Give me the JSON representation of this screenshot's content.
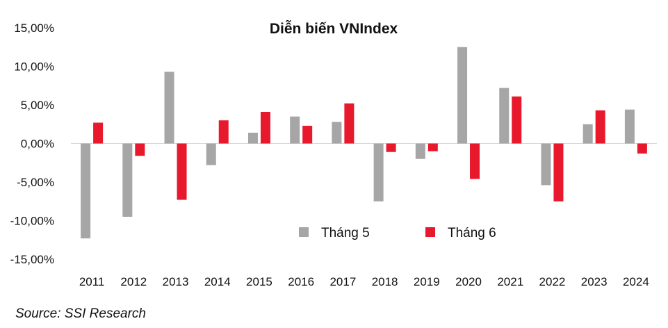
{
  "chart_data": {
    "type": "bar",
    "title": "Diễn biến VNIndex",
    "xlabel": "",
    "ylabel": "",
    "categories": [
      "2011",
      "2012",
      "2013",
      "2014",
      "2015",
      "2016",
      "2017",
      "2018",
      "2019",
      "2020",
      "2021",
      "2022",
      "2023",
      "2024"
    ],
    "series": [
      {
        "name": "Tháng 5",
        "color": "#a6a6a6",
        "values": [
          -12.3,
          -9.5,
          9.3,
          -2.8,
          1.4,
          3.5,
          2.8,
          -7.5,
          -2.0,
          12.5,
          7.2,
          -5.4,
          2.5,
          4.4
        ]
      },
      {
        "name": "Tháng 6",
        "color": "#e8192c",
        "values": [
          2.7,
          -1.6,
          -7.3,
          3.0,
          4.1,
          2.3,
          5.2,
          -1.1,
          -1.0,
          -4.6,
          6.1,
          -7.5,
          4.3,
          -1.3
        ]
      }
    ],
    "ylim": [
      -15,
      15
    ],
    "yticks": [
      -15,
      -10,
      -5,
      0,
      5,
      10,
      15
    ],
    "ytick_labels": [
      "-15,00%",
      "-10,00%",
      "-5,00%",
      "0,00%",
      "5,00%",
      "10,00%",
      "15,00%"
    ],
    "grid": false,
    "legend_position": "bottom-center inside plot"
  },
  "source": "Source: SSI Research"
}
